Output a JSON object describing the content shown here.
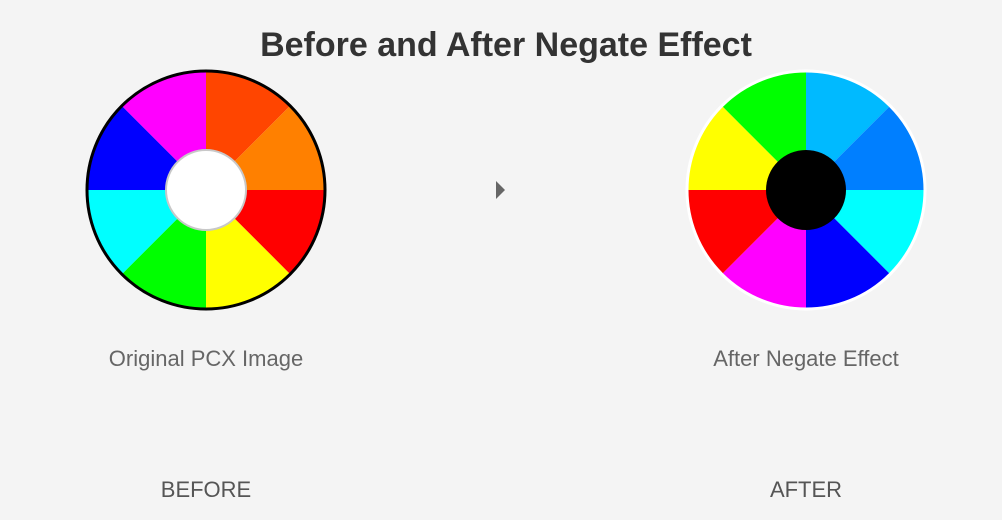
{
  "title": "Before and After Negate Effect",
  "before": {
    "caption": "Original PCX Image",
    "label": "BEFORE",
    "rim_color": "#000000",
    "center_color": "#ffffff",
    "segments": [
      "#ff4500",
      "#ff8000",
      "#ff0000",
      "#ffff00",
      "#00ff00",
      "#00ffff",
      "#0000ff",
      "#ff00ff"
    ]
  },
  "after": {
    "caption": "After Negate Effect",
    "label": "AFTER",
    "rim_color": "#ffffff",
    "center_color": "#000000",
    "segments": [
      "#00baff",
      "#007fff",
      "#00ffff",
      "#0000ff",
      "#ff00ff",
      "#ff0000",
      "#ffff00",
      "#00ff00"
    ]
  },
  "arrow_icon": "triangle-right"
}
